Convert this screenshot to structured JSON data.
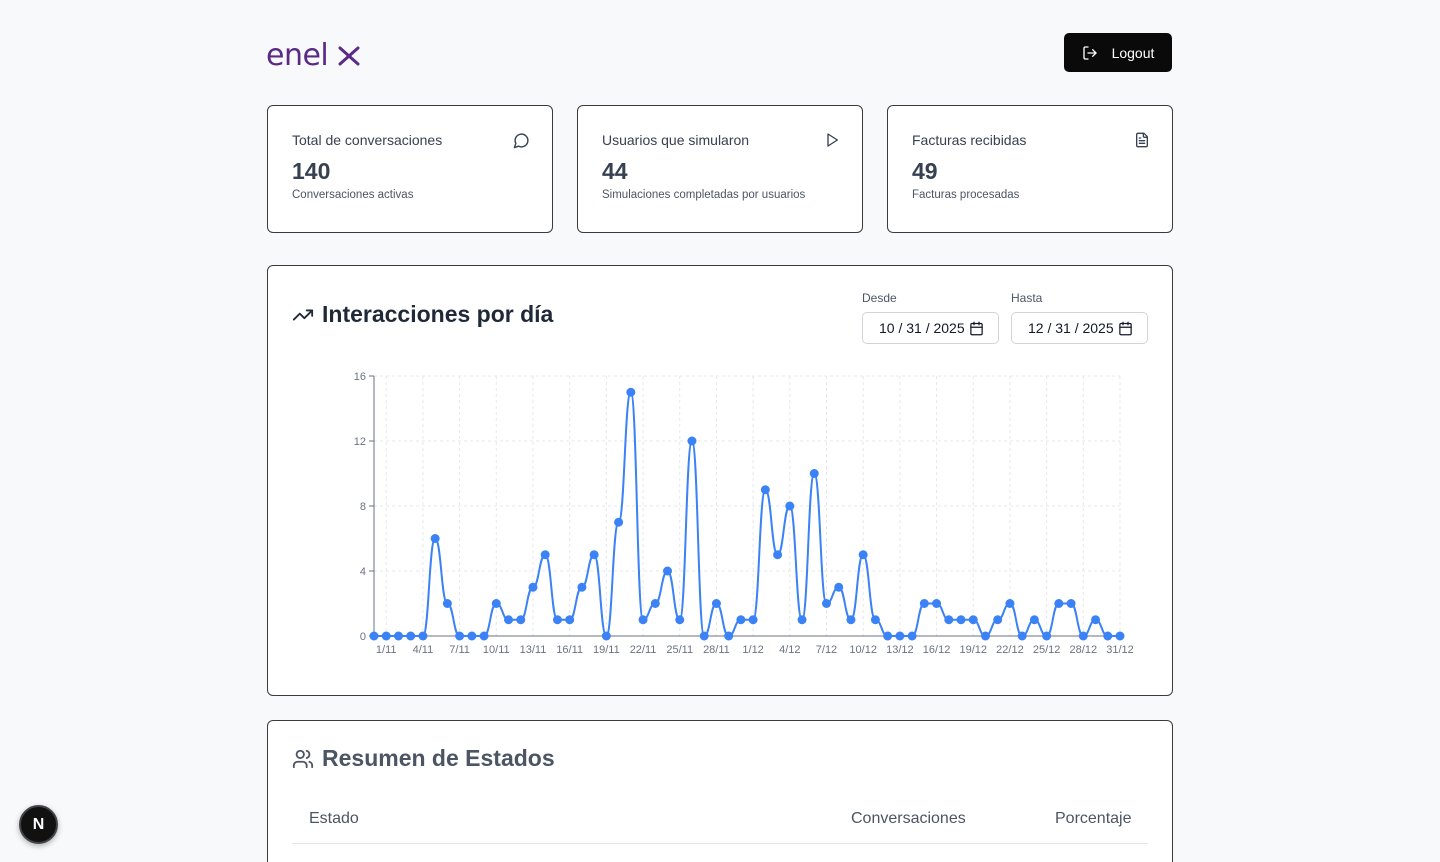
{
  "header": {
    "logo_text": "enel",
    "logout_label": "Logout"
  },
  "cards": [
    {
      "title": "Total de conversaciones",
      "value": "140",
      "desc": "Conversaciones activas",
      "icon": "message-circle-icon"
    },
    {
      "title": "Usuarios que simularon",
      "value": "44",
      "desc": "Simulaciones completadas por usuarios",
      "icon": "play-icon"
    },
    {
      "title": "Facturas recibidas",
      "value": "49",
      "desc": "Facturas procesadas",
      "icon": "file-text-icon"
    }
  ],
  "interactions": {
    "title": "Interacciones por día",
    "from_label": "Desde",
    "from_value": "10 / 31 / 2025",
    "to_label": "Hasta",
    "to_value": "12 / 31 / 2025"
  },
  "chart_data": {
    "type": "line",
    "color": "#3b82f6",
    "ylim": [
      0,
      16
    ],
    "yticks": [
      0,
      4,
      8,
      12,
      16
    ],
    "x": [
      "31/10",
      "1/11",
      "2/11",
      "3/11",
      "4/11",
      "5/11",
      "6/11",
      "7/11",
      "8/11",
      "9/11",
      "10/11",
      "11/11",
      "12/11",
      "13/11",
      "14/11",
      "15/11",
      "16/11",
      "17/11",
      "18/11",
      "19/11",
      "20/11",
      "21/11",
      "22/11",
      "23/11",
      "24/11",
      "25/11",
      "26/11",
      "27/11",
      "28/11",
      "29/11",
      "30/11",
      "1/12",
      "2/12",
      "3/12",
      "4/12",
      "5/12",
      "6/12",
      "7/12",
      "8/12",
      "9/12",
      "10/12",
      "11/12",
      "12/12",
      "13/12",
      "14/12",
      "15/12",
      "16/12",
      "17/12",
      "18/12",
      "19/12",
      "20/12",
      "21/12",
      "22/12",
      "23/12",
      "24/12",
      "25/12",
      "26/12",
      "27/12",
      "28/12",
      "29/12",
      "30/12",
      "31/12"
    ],
    "values": [
      0,
      0,
      0,
      0,
      0,
      6,
      2,
      0,
      0,
      0,
      2,
      1,
      1,
      3,
      5,
      1,
      1,
      3,
      5,
      0,
      7,
      15,
      1,
      2,
      4,
      1,
      12,
      0,
      2,
      0,
      1,
      1,
      9,
      5,
      8,
      1,
      10,
      2,
      3,
      1,
      5,
      1,
      0,
      0,
      0,
      2,
      2,
      1,
      1,
      1,
      0,
      1,
      2,
      0,
      1,
      0,
      2,
      2,
      0,
      1,
      0,
      0
    ],
    "tick_labels": [
      "1/11",
      "4/11",
      "7/11",
      "10/11",
      "13/11",
      "16/11",
      "19/11",
      "22/11",
      "25/11",
      "28/11",
      "1/12",
      "4/12",
      "7/12",
      "10/12",
      "13/12",
      "16/12",
      "19/12",
      "22/12",
      "25/12",
      "28/12",
      "31/12"
    ],
    "grid": true
  },
  "summary": {
    "title": "Resumen de Estados",
    "col_estado": "Estado",
    "col_conversaciones": "Conversaciones",
    "col_porcentaje": "Porcentaje"
  },
  "badge": {
    "letter": "N"
  }
}
